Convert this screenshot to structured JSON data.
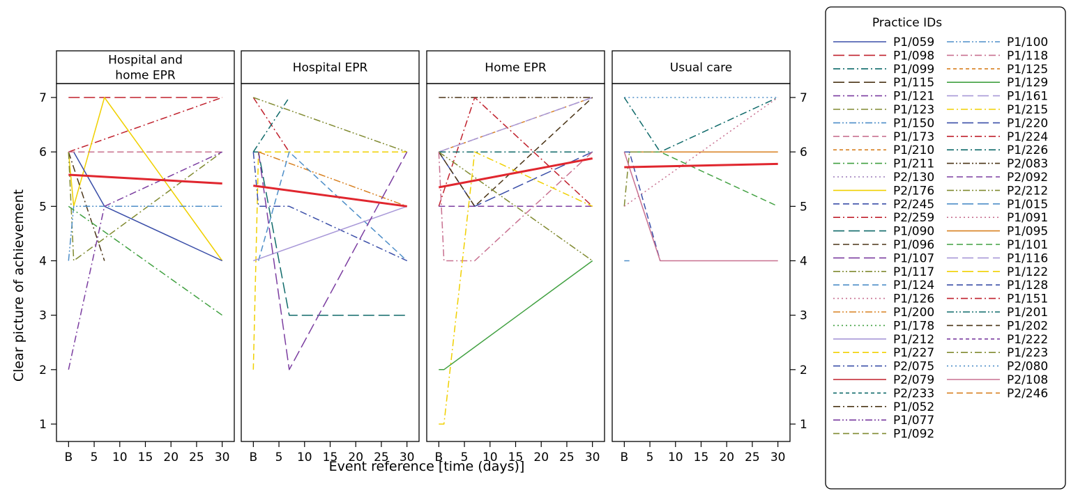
{
  "chart_data": {
    "type": "line",
    "xlabel": "Event reference [time (days)]",
    "ylabel": "Clear picture of achievement",
    "x_tick_labels": [
      "B",
      "5",
      "10",
      "15",
      "20",
      "25",
      "30"
    ],
    "x_tick_values": [
      0,
      5,
      10,
      15,
      20,
      25,
      30
    ],
    "ylim": [
      1,
      7
    ],
    "y_ticks": [
      1,
      2,
      3,
      4,
      5,
      6,
      7
    ],
    "xlim": [
      -1,
      31
    ],
    "legend": {
      "title": "Practice IDs",
      "placement": "right",
      "entries": [
        {
          "name": "P1/059",
          "color": "#3a4ea8",
          "dash": "solid"
        },
        {
          "name": "P1/098",
          "color": "#c0202c",
          "dash": "longdash"
        },
        {
          "name": "P1/099",
          "color": "#0f6a6a",
          "dash": "dashdot"
        },
        {
          "name": "P1/115",
          "color": "#4a3416",
          "dash": "longdash"
        },
        {
          "name": "P1/121",
          "color": "#7b3da0",
          "dash": "dashdot"
        },
        {
          "name": "P1/123",
          "color": "#808a30",
          "dash": "dashdot"
        },
        {
          "name": "P1/150",
          "color": "#4d8ec8",
          "dash": "dashdotdot"
        },
        {
          "name": "P1/173",
          "color": "#c87090",
          "dash": "dash"
        },
        {
          "name": "P1/210",
          "color": "#d88020",
          "dash": "shortdash"
        },
        {
          "name": "P1/211",
          "color": "#40a040",
          "dash": "dashdot"
        },
        {
          "name": "P2/130",
          "color": "#9a78b8",
          "dash": "dot"
        },
        {
          "name": "P2/176",
          "color": "#f0d000",
          "dash": "solid"
        },
        {
          "name": "P2/245",
          "color": "#3a4ea8",
          "dash": "dash"
        },
        {
          "name": "P2/259",
          "color": "#c0202c",
          "dash": "dashdot"
        },
        {
          "name": "P1/090",
          "color": "#0f6a6a",
          "dash": "longdash"
        },
        {
          "name": "P1/096",
          "color": "#4a3416",
          "dash": "dash"
        },
        {
          "name": "P1/107",
          "color": "#7b3da0",
          "dash": "longdash"
        },
        {
          "name": "P1/117",
          "color": "#808a30",
          "dash": "dashdotdot"
        },
        {
          "name": "P1/124",
          "color": "#4d8ec8",
          "dash": "dash"
        },
        {
          "name": "P1/126",
          "color": "#c87090",
          "dash": "dot"
        },
        {
          "name": "P1/200",
          "color": "#d88020",
          "dash": "dashdotdot"
        },
        {
          "name": "P1/178",
          "color": "#40a040",
          "dash": "dot"
        },
        {
          "name": "P1/212",
          "color": "#a898d8",
          "dash": "solid"
        },
        {
          "name": "P1/227",
          "color": "#f0d000",
          "dash": "dash"
        },
        {
          "name": "P2/075",
          "color": "#3a4ea8",
          "dash": "dashdot"
        },
        {
          "name": "P2/079",
          "color": "#c0202c",
          "dash": "solid"
        },
        {
          "name": "P2/233",
          "color": "#0f6a6a",
          "dash": "shortdash"
        },
        {
          "name": "P1/052",
          "color": "#4a3416",
          "dash": "dashdot"
        },
        {
          "name": "P1/077",
          "color": "#7b3da0",
          "dash": "dashdotdot"
        },
        {
          "name": "P1/092",
          "color": "#808a30",
          "dash": "dash"
        },
        {
          "name": "P1/100",
          "color": "#4d8ec8",
          "dash": "dashdotdot"
        },
        {
          "name": "P1/118",
          "color": "#c87090",
          "dash": "dashdot"
        },
        {
          "name": "P1/125",
          "color": "#d88020",
          "dash": "shortdash"
        },
        {
          "name": "P1/129",
          "color": "#40a040",
          "dash": "solid"
        },
        {
          "name": "P1/161",
          "color": "#a898d8",
          "dash": "longdash"
        },
        {
          "name": "P1/215",
          "color": "#f0d000",
          "dash": "dashdot"
        },
        {
          "name": "P1/220",
          "color": "#3a4ea8",
          "dash": "longdash"
        },
        {
          "name": "P1/224",
          "color": "#c0202c",
          "dash": "dashdot"
        },
        {
          "name": "P1/226",
          "color": "#0f6a6a",
          "dash": "dashdot"
        },
        {
          "name": "P2/083",
          "color": "#4a3416",
          "dash": "dashdotdot"
        },
        {
          "name": "P2/092",
          "color": "#7b3da0",
          "dash": "dash"
        },
        {
          "name": "P2/212",
          "color": "#808a30",
          "dash": "dashdotdot"
        },
        {
          "name": "P1/015",
          "color": "#4d8ec8",
          "dash": "longdash"
        },
        {
          "name": "P1/091",
          "color": "#c87090",
          "dash": "dot"
        },
        {
          "name": "P1/095",
          "color": "#d88020",
          "dash": "solid"
        },
        {
          "name": "P1/101",
          "color": "#40a040",
          "dash": "dash"
        },
        {
          "name": "P1/116",
          "color": "#a898d8",
          "dash": "longdash"
        },
        {
          "name": "P1/122",
          "color": "#f0d000",
          "dash": "longdash"
        },
        {
          "name": "P1/128",
          "color": "#3a4ea8",
          "dash": "dash"
        },
        {
          "name": "P1/151",
          "color": "#c0202c",
          "dash": "dashdot"
        },
        {
          "name": "P1/201",
          "color": "#0f6a6a",
          "dash": "dashdotdot"
        },
        {
          "name": "P1/202",
          "color": "#4a3416",
          "dash": "dash"
        },
        {
          "name": "P1/222",
          "color": "#7b3da0",
          "dash": "shortdash"
        },
        {
          "name": "P1/223",
          "color": "#808a30",
          "dash": "dashdot"
        },
        {
          "name": "P2/080",
          "color": "#4d8ec8",
          "dash": "dot"
        },
        {
          "name": "P2/108",
          "color": "#c87090",
          "dash": "solid"
        },
        {
          "name": "P2/246",
          "color": "#d88020",
          "dash": "dash"
        }
      ]
    },
    "panels": [
      {
        "title": [
          "Hospital and",
          "home EPR"
        ],
        "series": [
          {
            "color": "#c0202c",
            "dash": "longdash",
            "x": [
              0,
              30
            ],
            "y": [
              7,
              7
            ]
          },
          {
            "color": "#c0202c",
            "dash": "dashdot",
            "x": [
              0,
              30
            ],
            "y": [
              6,
              7
            ]
          },
          {
            "color": "#f0d000",
            "dash": "solid",
            "x": [
              0,
              1,
              7,
              30
            ],
            "y": [
              6,
              5,
              7,
              4
            ]
          },
          {
            "color": "#3a4ea8",
            "dash": "solid",
            "x": [
              0,
              1,
              7,
              30
            ],
            "y": [
              6,
              6,
              5,
              4
            ]
          },
          {
            "color": "#4a3416",
            "dash": "dashdot",
            "x": [
              0,
              7
            ],
            "y": [
              6,
              4
            ]
          },
          {
            "color": "#808a30",
            "dash": "dashdot",
            "x": [
              0,
              1,
              30
            ],
            "y": [
              6,
              4,
              6
            ]
          },
          {
            "color": "#d88020",
            "dash": "dash",
            "x": [
              0,
              30
            ],
            "y": [
              6,
              6
            ]
          },
          {
            "color": "#c87090",
            "dash": "dash",
            "x": [
              0,
              30
            ],
            "y": [
              6,
              6
            ]
          },
          {
            "color": "#4d8ec8",
            "dash": "dashdotdot",
            "x": [
              0,
              1,
              30
            ],
            "y": [
              4,
              5,
              5
            ]
          },
          {
            "color": "#40a040",
            "dash": "dashdot",
            "x": [
              0,
              30
            ],
            "y": [
              5,
              3
            ]
          },
          {
            "color": "#7b3da0",
            "dash": "dashdot",
            "x": [
              0,
              7,
              30
            ],
            "y": [
              2,
              5,
              6
            ]
          },
          {
            "color": "#e0262e",
            "dash": "solid",
            "bold": true,
            "x": [
              0,
              30
            ],
            "y": [
              5.58,
              5.42
            ]
          }
        ]
      },
      {
        "title": [
          "Hospital EPR"
        ],
        "series": [
          {
            "color": "#c0202c",
            "dash": "dashdot",
            "x": [
              0,
              7
            ],
            "y": [
              7,
              6
            ]
          },
          {
            "color": "#808a30",
            "dash": "dashdotdot",
            "x": [
              0,
              30
            ],
            "y": [
              7,
              6
            ]
          },
          {
            "color": "#0f6a6a",
            "dash": "dashdot",
            "x": [
              0,
              7
            ],
            "y": [
              6,
              7
            ]
          },
          {
            "color": "#0f6a6a",
            "dash": "longdash",
            "x": [
              0,
              1,
              7,
              30
            ],
            "y": [
              6,
              6,
              3,
              3
            ]
          },
          {
            "color": "#f0d000",
            "dash": "dash",
            "x": [
              0,
              1,
              30
            ],
            "y": [
              2,
              6,
              6
            ]
          },
          {
            "color": "#d88020",
            "dash": "dashdotdot",
            "x": [
              1,
              30
            ],
            "y": [
              6,
              5
            ]
          },
          {
            "color": "#4d8ec8",
            "dash": "dash",
            "x": [
              1,
              7,
              30
            ],
            "y": [
              4,
              6,
              4
            ]
          },
          {
            "color": "#3a4ea8",
            "dash": "dashdot",
            "x": [
              0,
              1,
              7,
              30
            ],
            "y": [
              6,
              5,
              5,
              4
            ]
          },
          {
            "color": "#a898d8",
            "dash": "solid",
            "x": [
              0,
              30
            ],
            "y": [
              4,
              5
            ]
          },
          {
            "color": "#7b3da0",
            "dash": "longdash",
            "x": [
              1,
              7,
              30
            ],
            "y": [
              6,
              2,
              6
            ]
          },
          {
            "color": "#e0262e",
            "dash": "solid",
            "bold": true,
            "x": [
              0,
              30
            ],
            "y": [
              5.38,
              5.0
            ]
          }
        ]
      },
      {
        "title": [
          "Home EPR"
        ],
        "series": [
          {
            "color": "#4a3416",
            "dash": "dashdotdot",
            "x": [
              0,
              30
            ],
            "y": [
              7,
              7
            ]
          },
          {
            "color": "#c0202c",
            "dash": "dashdot",
            "x": [
              0,
              7,
              30
            ],
            "y": [
              5,
              7,
              5
            ]
          },
          {
            "color": "#d88020",
            "dash": "shortdash",
            "x": [
              0,
              30
            ],
            "y": [
              6,
              7
            ]
          },
          {
            "color": "#a898d8",
            "dash": "longdash",
            "x": [
              0,
              30
            ],
            "y": [
              6,
              7
            ]
          },
          {
            "color": "#0f6a6a",
            "dash": "dashdot",
            "x": [
              0,
              30
            ],
            "y": [
              6,
              6
            ]
          },
          {
            "color": "#3a4ea8",
            "dash": "longdash",
            "x": [
              0,
              7,
              30
            ],
            "y": [
              6,
              5,
              6
            ]
          },
          {
            "color": "#4a3416",
            "dash": "dash",
            "x": [
              0,
              7,
              30
            ],
            "y": [
              6,
              5,
              7
            ]
          },
          {
            "color": "#7b3da0",
            "dash": "dash",
            "x": [
              0,
              30
            ],
            "y": [
              5,
              5
            ]
          },
          {
            "color": "#808a30",
            "dash": "dashdotdot",
            "x": [
              0,
              30
            ],
            "y": [
              6,
              4
            ]
          },
          {
            "color": "#c87090",
            "dash": "dashdot",
            "x": [
              0,
              1,
              7,
              30
            ],
            "y": [
              6,
              4,
              4,
              6
            ]
          },
          {
            "color": "#40a040",
            "dash": "solid",
            "x": [
              0,
              1,
              30
            ],
            "y": [
              2,
              2,
              4
            ]
          },
          {
            "color": "#f0d000",
            "dash": "dashdot",
            "x": [
              0,
              1,
              7,
              30
            ],
            "y": [
              1,
              1,
              6,
              5
            ]
          },
          {
            "color": "#e0262e",
            "dash": "solid",
            "bold": true,
            "x": [
              0,
              30
            ],
            "y": [
              5.35,
              5.88
            ]
          }
        ]
      },
      {
        "title": [
          "Usual care"
        ],
        "series": [
          {
            "color": "#4d8ec8",
            "dash": "dot",
            "x": [
              0,
              30
            ],
            "y": [
              7,
              7
            ]
          },
          {
            "color": "#0f6a6a",
            "dash": "dashdot",
            "x": [
              0,
              7,
              30
            ],
            "y": [
              7,
              6,
              7
            ]
          },
          {
            "color": "#d88020",
            "dash": "solid",
            "x": [
              0,
              30
            ],
            "y": [
              6,
              6
            ]
          },
          {
            "color": "#40a040",
            "dash": "dash",
            "x": [
              0,
              7,
              30
            ],
            "y": [
              6,
              6,
              5
            ]
          },
          {
            "color": "#808a30",
            "dash": "dashdot",
            "x": [
              0,
              1,
              7
            ],
            "y": [
              5,
              6,
              6
            ]
          },
          {
            "color": "#c87090",
            "dash": "dot",
            "x": [
              0,
              30
            ],
            "y": [
              5,
              7
            ]
          },
          {
            "color": "#3a4ea8",
            "dash": "dash",
            "x": [
              0,
              1,
              7
            ],
            "y": [
              6,
              6,
              4
            ]
          },
          {
            "color": "#c87090",
            "dash": "solid",
            "x": [
              0,
              7,
              30
            ],
            "y": [
              6,
              4,
              4
            ]
          },
          {
            "color": "#4d8ec8",
            "dash": "longdash",
            "x": [
              0,
              1
            ],
            "y": [
              4,
              4
            ]
          },
          {
            "color": "#e0262e",
            "dash": "solid",
            "bold": true,
            "x": [
              0,
              30
            ],
            "y": [
              5.72,
              5.78
            ]
          }
        ]
      }
    ]
  }
}
